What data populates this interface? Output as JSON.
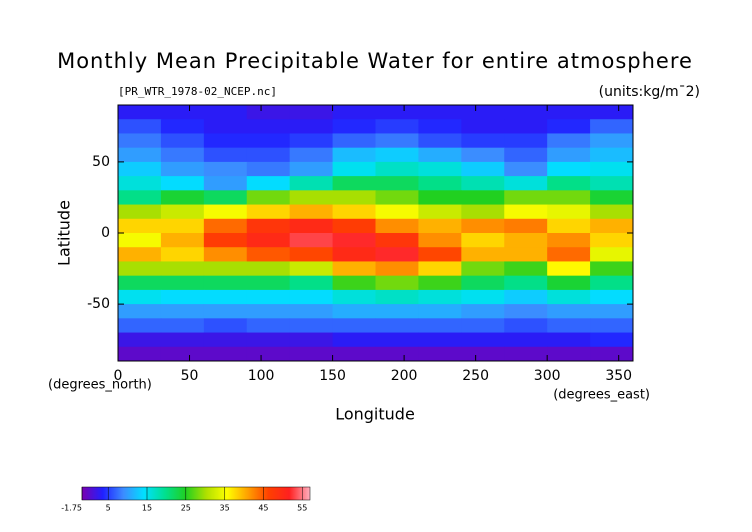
{
  "chart_data": {
    "type": "heatmap",
    "title": "Monthly Mean Precipitable Water for entire atmosphere",
    "subtitle": "[PR_WTR_1978-02_NCEP.nc]",
    "units": "(units:kg/m¯2)",
    "x_label": "Longitude",
    "y_label": "Latitude",
    "x_unit": "(degrees_east)",
    "y_unit": "(degrees_north)",
    "xlim": [
      0,
      360
    ],
    "ylim": [
      -90,
      90
    ],
    "xticks": [
      0,
      50,
      100,
      150,
      200,
      250,
      300,
      350
    ],
    "yticks": [
      -50,
      0,
      50
    ],
    "x": [
      15,
      45,
      75,
      105,
      135,
      165,
      195,
      225,
      255,
      285,
      315,
      345
    ],
    "y": [
      85,
      75,
      65,
      55,
      45,
      35,
      25,
      15,
      5,
      -5,
      -15,
      -25,
      -35,
      -45,
      -55,
      -65,
      -75,
      -85
    ],
    "z": [
      [
        3,
        3,
        3,
        2,
        2,
        3,
        3,
        3,
        3,
        3,
        3,
        3
      ],
      [
        6,
        4,
        3,
        3,
        3,
        4,
        5,
        4,
        3,
        3,
        4,
        7
      ],
      [
        8,
        6,
        4,
        4,
        5,
        7,
        8,
        6,
        5,
        5,
        8,
        10
      ],
      [
        10,
        8,
        6,
        6,
        8,
        12,
        13,
        11,
        9,
        7,
        10,
        12
      ],
      [
        13,
        10,
        9,
        8,
        10,
        15,
        17,
        16,
        13,
        9,
        14,
        15
      ],
      [
        16,
        14,
        10,
        14,
        18,
        22,
        22,
        20,
        18,
        16,
        20,
        18
      ],
      [
        20,
        24,
        22,
        28,
        30,
        30,
        28,
        25,
        25,
        28,
        28,
        24
      ],
      [
        30,
        32,
        35,
        38,
        40,
        38,
        35,
        32,
        30,
        35,
        34,
        30
      ],
      [
        38,
        38,
        44,
        48,
        50,
        47,
        42,
        40,
        42,
        43,
        38,
        40
      ],
      [
        35,
        40,
        47,
        50,
        53,
        52,
        48,
        42,
        38,
        40,
        42,
        38
      ],
      [
        40,
        38,
        42,
        45,
        46,
        50,
        52,
        46,
        40,
        40,
        44,
        34
      ],
      [
        30,
        30,
        30,
        30,
        32,
        40,
        42,
        38,
        28,
        26,
        36,
        26
      ],
      [
        22,
        22,
        22,
        22,
        20,
        26,
        28,
        26,
        22,
        20,
        24,
        20
      ],
      [
        15,
        14,
        14,
        14,
        14,
        16,
        17,
        16,
        15,
        13,
        16,
        14
      ],
      [
        10,
        10,
        10,
        10,
        10,
        11,
        11,
        11,
        10,
        9,
        10,
        10
      ],
      [
        7,
        7,
        6,
        7,
        7,
        7,
        7,
        7,
        7,
        6,
        7,
        7
      ],
      [
        2,
        2,
        2,
        2,
        2,
        3,
        3,
        3,
        3,
        3,
        3,
        4
      ],
      [
        0,
        0,
        0,
        0,
        0,
        0,
        0,
        0,
        0,
        0,
        0,
        0
      ]
    ],
    "clim": [
      -1.75,
      57
    ],
    "cticks": [
      -1.75,
      5,
      15,
      25,
      35,
      45,
      55
    ],
    "colormap": [
      "#7a00b0",
      "#2020ff",
      "#3c8cff",
      "#00e0ff",
      "#00e090",
      "#20d020",
      "#b0e000",
      "#ffff00",
      "#ffa000",
      "#ff4000",
      "#ff2020",
      "#ffb0c0"
    ]
  }
}
